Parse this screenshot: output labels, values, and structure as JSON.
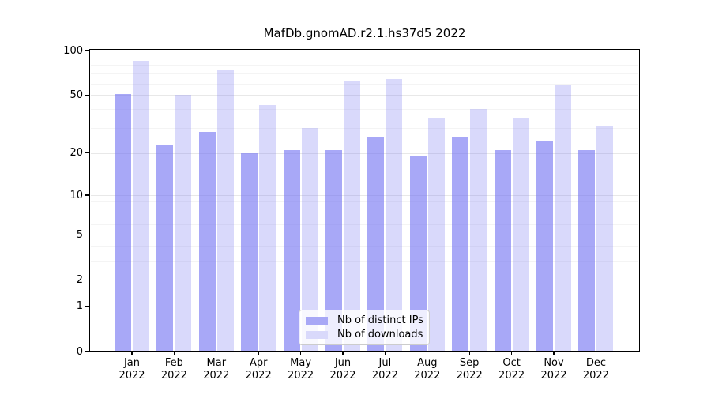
{
  "chart_data": {
    "type": "bar",
    "title": "MafDb.gnomAD.r2.1.hs37d5 2022",
    "categories": [
      "Jan",
      "Feb",
      "Mar",
      "Apr",
      "May",
      "Jun",
      "Jul",
      "Aug",
      "Sep",
      "Oct",
      "Nov",
      "Dec"
    ],
    "category_year": "2022",
    "series": [
      {
        "name": "Nb of distinct IPs",
        "color": "#a8a8f6",
        "color_rgba": "rgba(115,115,242,0.62)",
        "values": [
          51,
          23,
          28,
          20,
          21,
          21,
          26,
          19,
          26,
          21,
          24,
          21
        ]
      },
      {
        "name": "Nb of downloads",
        "color": "#d9d9fb",
        "color_rgba": "rgba(115,115,242,0.27)",
        "values": [
          85,
          50,
          75,
          43,
          30,
          62,
          64,
          35,
          40,
          35,
          58,
          31
        ]
      }
    ],
    "yscale": "log1p",
    "ylim": [
      0,
      100
    ],
    "y_major_ticks": [
      0,
      1,
      2,
      5,
      10,
      20,
      50,
      100
    ],
    "y_minor_gridlines": [
      3,
      4,
      6,
      7,
      8,
      9,
      30,
      40,
      60,
      70,
      80,
      90
    ],
    "xlabel": "",
    "ylabel": "",
    "grid": true,
    "legend_position": "lower center",
    "colors": {
      "major_gridline": "#e8e8e8",
      "minor_gridline": "#f4f4f4",
      "axis": "#000000"
    }
  }
}
